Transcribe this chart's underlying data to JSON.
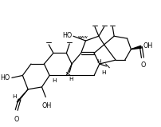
{
  "background_color": "#ffffff",
  "line_color": "#000000",
  "line_width": 0.85,
  "text_color": "#000000",
  "font_size": 5.8,
  "figsize": [
    2.03,
    1.59
  ],
  "dpi": 100,
  "xlim": [
    0,
    203
  ],
  "ylim": [
    0,
    159
  ]
}
